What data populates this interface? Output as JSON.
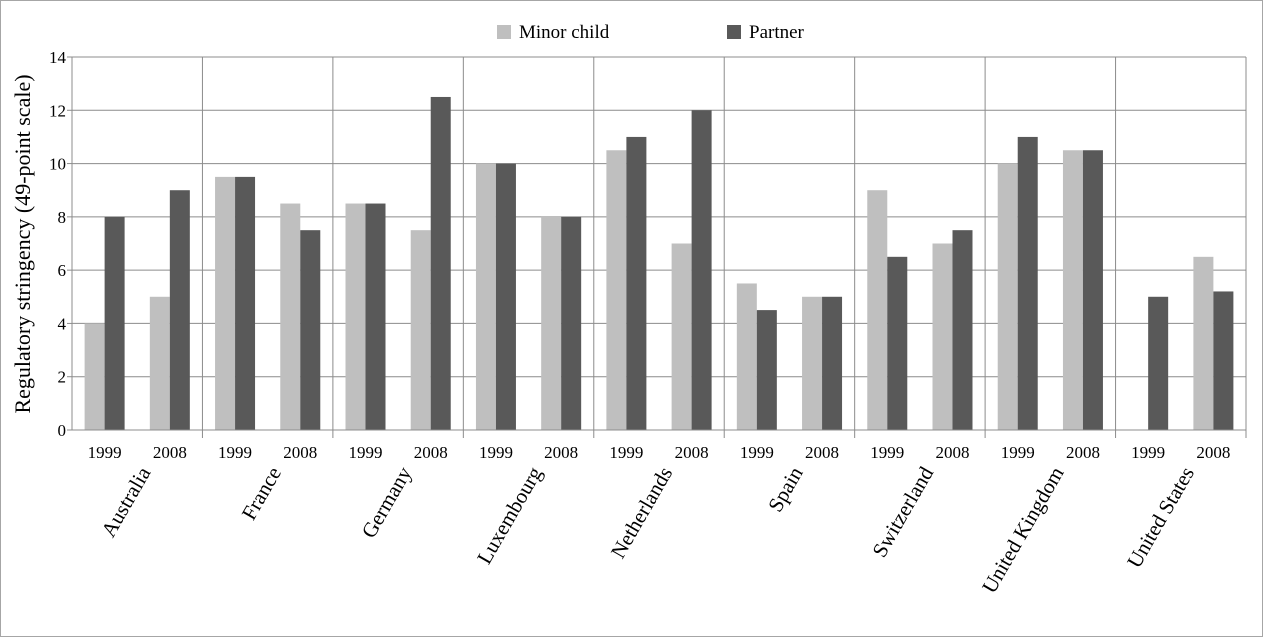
{
  "chart_data": {
    "type": "bar",
    "ylabel": "Regulatory stringency (49-point scale)",
    "ylim": [
      0,
      14
    ],
    "yticks": [
      "0",
      "2",
      "4",
      "6",
      "8",
      "10",
      "12",
      "14"
    ],
    "grid": true,
    "legend_position": "top-center",
    "groups": [
      {
        "country": "Australia",
        "years": [
          "1999",
          "2008"
        ]
      },
      {
        "country": "France",
        "years": [
          "1999",
          "2008"
        ]
      },
      {
        "country": "Germany",
        "years": [
          "1999",
          "2008"
        ]
      },
      {
        "country": "Luxembourg",
        "years": [
          "1999",
          "2008"
        ]
      },
      {
        "country": "Netherlands",
        "years": [
          "1999",
          "2008"
        ]
      },
      {
        "country": "Spain",
        "years": [
          "1999",
          "2008"
        ]
      },
      {
        "country": "Switzerland",
        "years": [
          "1999",
          "2008"
        ]
      },
      {
        "country": "United Kingdom",
        "years": [
          "1999",
          "2008"
        ]
      },
      {
        "country": "United States",
        "years": [
          "1999",
          "2008"
        ]
      }
    ],
    "series": [
      {
        "name": "Minor child",
        "color": "#bfbfbf",
        "values": [
          4,
          5,
          9.5,
          8.5,
          8.5,
          7.5,
          10,
          8,
          10.5,
          7,
          5.5,
          5,
          9,
          7,
          10,
          10.5,
          null,
          6.5
        ]
      },
      {
        "name": "Partner",
        "color": "#595959",
        "values": [
          8,
          9,
          9.5,
          7.5,
          8.5,
          12.5,
          10,
          8,
          11,
          12,
          4.5,
          5,
          6.5,
          7.5,
          11,
          10.5,
          5,
          5.2
        ]
      }
    ]
  }
}
